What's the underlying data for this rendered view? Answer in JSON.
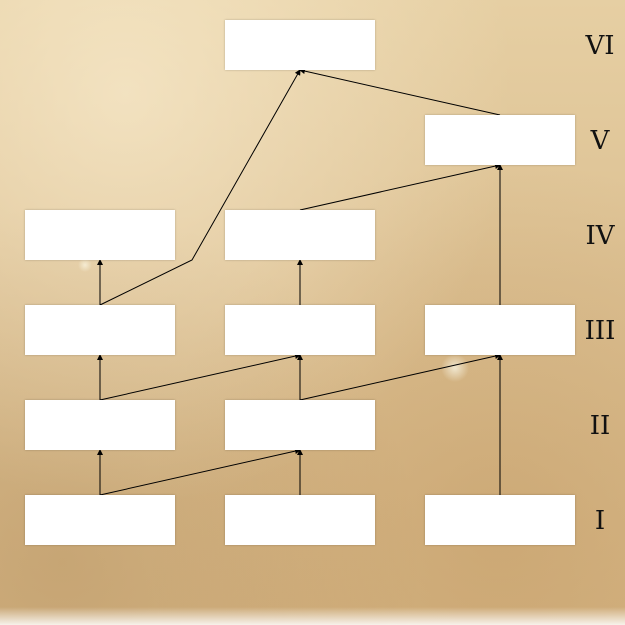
{
  "levels": [
    "VI",
    "V",
    "IV",
    "III",
    "II",
    "I"
  ],
  "boxes": [
    {
      "id": "VI-2",
      "level": "VI",
      "text": ""
    },
    {
      "id": "V-3",
      "level": "V",
      "text": ""
    },
    {
      "id": "IV-1",
      "level": "IV",
      "text": ""
    },
    {
      "id": "IV-2",
      "level": "IV",
      "text": ""
    },
    {
      "id": "III-1",
      "level": "III",
      "text": ""
    },
    {
      "id": "III-2",
      "level": "III",
      "text": ""
    },
    {
      "id": "III-3",
      "level": "III",
      "text": ""
    },
    {
      "id": "II-1",
      "level": "II",
      "text": ""
    },
    {
      "id": "II-2",
      "level": "II",
      "text": ""
    },
    {
      "id": "I-1",
      "level": "I",
      "text": ""
    },
    {
      "id": "I-2",
      "level": "I",
      "text": ""
    },
    {
      "id": "I-3",
      "level": "I",
      "text": ""
    }
  ],
  "edges": [
    {
      "from": "I-1",
      "to": "II-1"
    },
    {
      "from": "I-1",
      "to": "II-2"
    },
    {
      "from": "I-2",
      "to": "II-2"
    },
    {
      "from": "I-3",
      "to": "III-3"
    },
    {
      "from": "II-1",
      "to": "III-1"
    },
    {
      "from": "II-1",
      "to": "III-2"
    },
    {
      "from": "II-2",
      "to": "III-2"
    },
    {
      "from": "II-2",
      "to": "III-3"
    },
    {
      "from": "III-1",
      "to": "IV-1"
    },
    {
      "from": "III-1",
      "to": "VI-2"
    },
    {
      "from": "III-2",
      "to": "IV-2"
    },
    {
      "from": "III-3",
      "to": "V-3"
    },
    {
      "from": "IV-2",
      "to": "V-3"
    },
    {
      "from": "V-3",
      "to": "VI-2"
    }
  ]
}
